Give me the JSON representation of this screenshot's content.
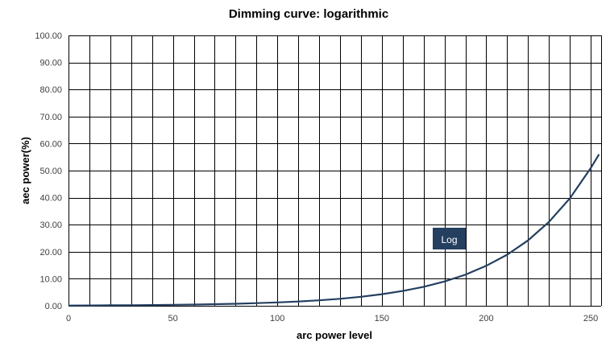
{
  "chart_data": {
    "type": "line",
    "title": "Dimming curve: logarithmic",
    "xlabel": "arc power level",
    "ylabel": "aec power(%)",
    "xlim": [
      0,
      255
    ],
    "ylim": [
      0,
      100
    ],
    "x_ticks": [
      0,
      50,
      100,
      150,
      200,
      250
    ],
    "x_tick_labels": [
      "0",
      "50",
      "100",
      "150",
      "200",
      "250"
    ],
    "y_ticks": [
      0,
      10,
      20,
      30,
      40,
      50,
      60,
      70,
      80,
      90,
      100
    ],
    "y_tick_labels": [
      "0.00",
      "10.00",
      "20.00",
      "30.00",
      "40.00",
      "50.00",
      "60.00",
      "70.00",
      "80.00",
      "90.00",
      "100.00"
    ],
    "grid": true,
    "series": [
      {
        "name": "Log",
        "color": "#243F60",
        "x": [
          0,
          1,
          10,
          20,
          30,
          40,
          50,
          60,
          70,
          80,
          90,
          100,
          110,
          120,
          130,
          140,
          150,
          160,
          170,
          180,
          190,
          200,
          210,
          220,
          230,
          240,
          250,
          254
        ],
        "y": [
          0,
          0.1,
          0.13,
          0.17,
          0.22,
          0.28,
          0.36,
          0.46,
          0.59,
          0.75,
          0.97,
          1.24,
          1.59,
          2.03,
          2.6,
          3.34,
          4.28,
          5.48,
          7.02,
          9.0,
          11.5,
          14.8,
          18.9,
          24.2,
          31.0,
          39.7,
          50.9,
          56.0
        ]
      }
    ],
    "legend": {
      "placement": "inside",
      "label": "Log"
    }
  }
}
